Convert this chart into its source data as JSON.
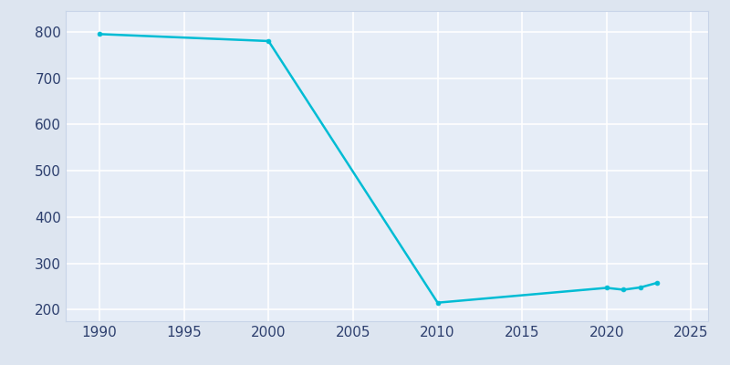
{
  "x": [
    1990,
    2000,
    2010,
    2020,
    2021,
    2022,
    2023
  ],
  "y": [
    795,
    780,
    215,
    247,
    243,
    248,
    258
  ],
  "line_color": "#00bcd4",
  "marker": "o",
  "marker_size": 3.5,
  "linewidth": 1.8,
  "fig_bg_color": "#dde5f0",
  "plot_bg_color": "#e6edf7",
  "grid_color": "#ffffff",
  "xlim": [
    1988,
    2026
  ],
  "ylim": [
    175,
    845
  ],
  "xticks": [
    1990,
    1995,
    2000,
    2005,
    2010,
    2015,
    2020,
    2025
  ],
  "yticks": [
    200,
    300,
    400,
    500,
    600,
    700,
    800
  ],
  "tick_label_color": "#2d3f6e",
  "tick_fontsize": 11,
  "spine_color": "#c8d4e8"
}
